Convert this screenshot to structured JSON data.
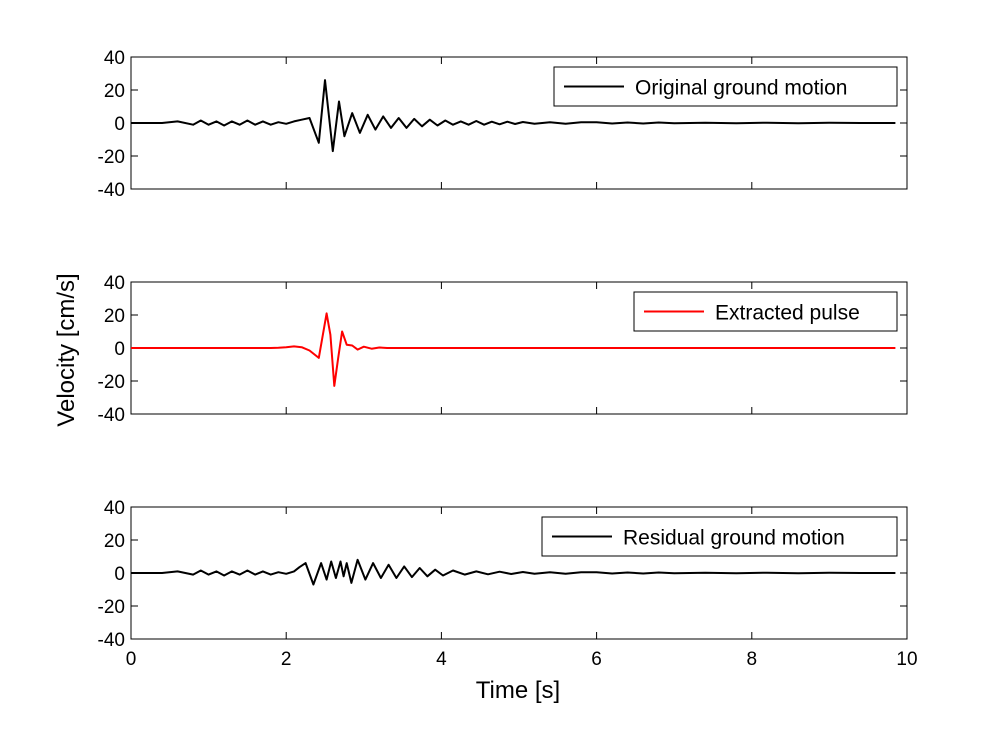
{
  "chart_data": {
    "type": "line",
    "xlabel": "Time [s]",
    "ylabel": "Velocity [cm/s]",
    "xlim": [
      0,
      10
    ],
    "x_ticks": [
      "0",
      "2",
      "4",
      "6",
      "8",
      "10"
    ],
    "ylim": [
      -40,
      40
    ],
    "y_ticks": [
      "40",
      "20",
      "0",
      "-20",
      "-40"
    ],
    "grid": false,
    "legend_position": "top-right",
    "panels": [
      {
        "legend": "Original ground motion",
        "color": "#000000",
        "x": [
          0,
          0.4,
          0.6,
          0.8,
          0.9,
          1.0,
          1.1,
          1.2,
          1.3,
          1.4,
          1.5,
          1.6,
          1.7,
          1.8,
          1.9,
          2.0,
          2.1,
          2.2,
          2.3,
          2.42,
          2.5,
          2.6,
          2.68,
          2.75,
          2.85,
          2.95,
          3.05,
          3.15,
          3.25,
          3.35,
          3.45,
          3.55,
          3.65,
          3.75,
          3.85,
          3.95,
          4.05,
          4.15,
          4.25,
          4.35,
          4.45,
          4.55,
          4.65,
          4.75,
          4.85,
          4.95,
          5.05,
          5.2,
          5.4,
          5.6,
          5.8,
          6.0,
          6.2,
          6.4,
          6.6,
          6.8,
          7.0,
          7.4,
          7.8,
          8.2,
          8.6,
          9.0,
          9.4,
          9.85
        ],
        "y": [
          0,
          0,
          1,
          -1,
          1.5,
          -1,
          1,
          -1.5,
          1,
          -1,
          1.5,
          -1,
          1,
          -1,
          0.5,
          -0.5,
          1,
          2,
          3,
          -12,
          26,
          -17,
          13,
          -8,
          6,
          -6,
          5,
          -4,
          4,
          -3,
          3,
          -3,
          2.5,
          -2,
          2,
          -1.5,
          1.5,
          -1,
          1,
          -1,
          1.2,
          -1,
          0.8,
          -0.8,
          0.8,
          -0.6,
          0.6,
          -0.5,
          0.5,
          -0.4,
          0.4,
          0.4,
          -0.3,
          0.3,
          -0.3,
          0.3,
          -0.2,
          0.2,
          -0.2,
          0.2,
          -0.1,
          0.1,
          0,
          0
        ]
      },
      {
        "legend": "Extracted pulse",
        "color": "#ff0000",
        "x": [
          0,
          1.8,
          1.9,
          2.0,
          2.1,
          2.2,
          2.3,
          2.42,
          2.52,
          2.57,
          2.62,
          2.67,
          2.72,
          2.78,
          2.85,
          2.92,
          3.0,
          3.1,
          3.2,
          3.3,
          9.85
        ],
        "y": [
          0,
          0,
          0.2,
          0.5,
          1,
          0.5,
          -1.5,
          -6,
          21,
          8,
          -23,
          -6,
          10,
          2,
          1.5,
          -1,
          0.8,
          -0.4,
          0.3,
          0,
          0
        ]
      },
      {
        "legend": "Residual ground motion",
        "color": "#000000",
        "x": [
          0,
          0.4,
          0.6,
          0.8,
          0.9,
          1.0,
          1.1,
          1.2,
          1.3,
          1.4,
          1.5,
          1.6,
          1.7,
          1.8,
          1.9,
          2.0,
          2.1,
          2.17,
          2.25,
          2.35,
          2.45,
          2.52,
          2.58,
          2.64,
          2.7,
          2.74,
          2.78,
          2.84,
          2.92,
          3.02,
          3.12,
          3.22,
          3.32,
          3.42,
          3.52,
          3.62,
          3.72,
          3.82,
          3.92,
          4.02,
          4.15,
          4.3,
          4.45,
          4.6,
          4.75,
          4.9,
          5.05,
          5.2,
          5.4,
          5.6,
          5.8,
          6.0,
          6.2,
          6.4,
          6.6,
          6.8,
          7.0,
          7.4,
          7.8,
          8.2,
          8.6,
          9.0,
          9.4,
          9.85
        ],
        "y": [
          0,
          0,
          1,
          -1,
          1.5,
          -1,
          1,
          -1.5,
          1,
          -1,
          1.5,
          -1,
          1,
          -1,
          0.5,
          -0.5,
          1,
          3.5,
          6,
          -7,
          6,
          -4,
          7,
          -3,
          7,
          -2,
          6,
          -6,
          8,
          -4,
          6,
          -3,
          5,
          -3,
          4,
          -2.5,
          3,
          -2,
          2,
          -1.5,
          1.5,
          -1,
          1,
          -0.8,
          0.8,
          -0.6,
          0.6,
          -0.5,
          0.5,
          -0.4,
          0.4,
          0.4,
          -0.3,
          0.3,
          -0.3,
          0.3,
          -0.2,
          0.2,
          -0.2,
          0.2,
          -0.1,
          0.1,
          0,
          0
        ]
      }
    ]
  }
}
